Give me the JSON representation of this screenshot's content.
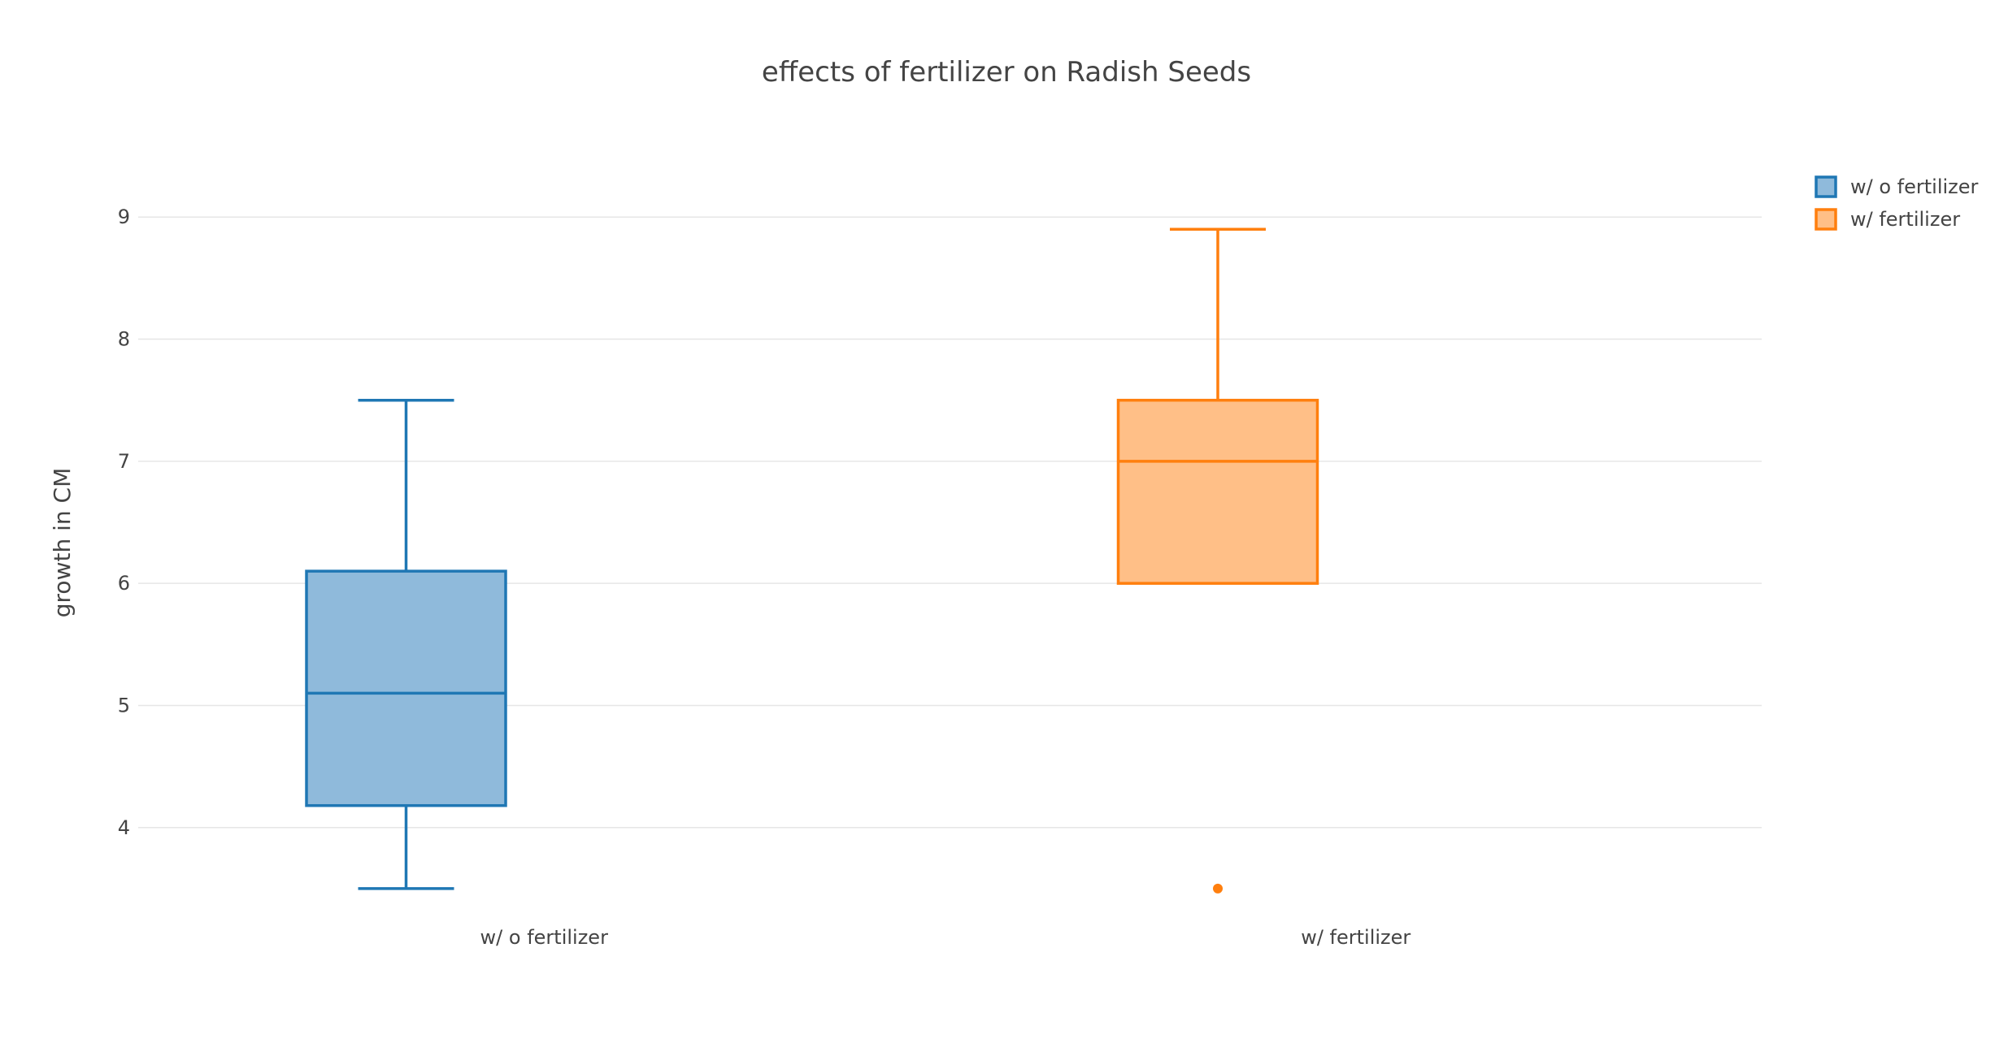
{
  "chart_data": {
    "type": "box",
    "title": "effects of fertilizer on Radish Seeds",
    "xlabel": "",
    "ylabel": "growth in CM",
    "ylim": [
      3.26,
      9.78
    ],
    "yticks": [
      4,
      5,
      6,
      7,
      8,
      9
    ],
    "grid": true,
    "legend_position": "top-right",
    "series": [
      {
        "name": "  w/ o fertilizer",
        "category": "w/ o fertilizer",
        "color": "#1f77b4",
        "fill": "#8fbadb",
        "min": 3.5,
        "q1": 4.18,
        "median": 5.1,
        "q3": 6.1,
        "max": 7.5,
        "outliers": []
      },
      {
        "name": "w/ fertilizer",
        "category": "w/ fertilizer",
        "color": "#ff7f0e",
        "fill": "#ffbf87",
        "min": 6.0,
        "q1": 6.0,
        "median": 7.0,
        "q3": 7.5,
        "max": 8.9,
        "outliers": [
          3.5
        ]
      }
    ]
  }
}
